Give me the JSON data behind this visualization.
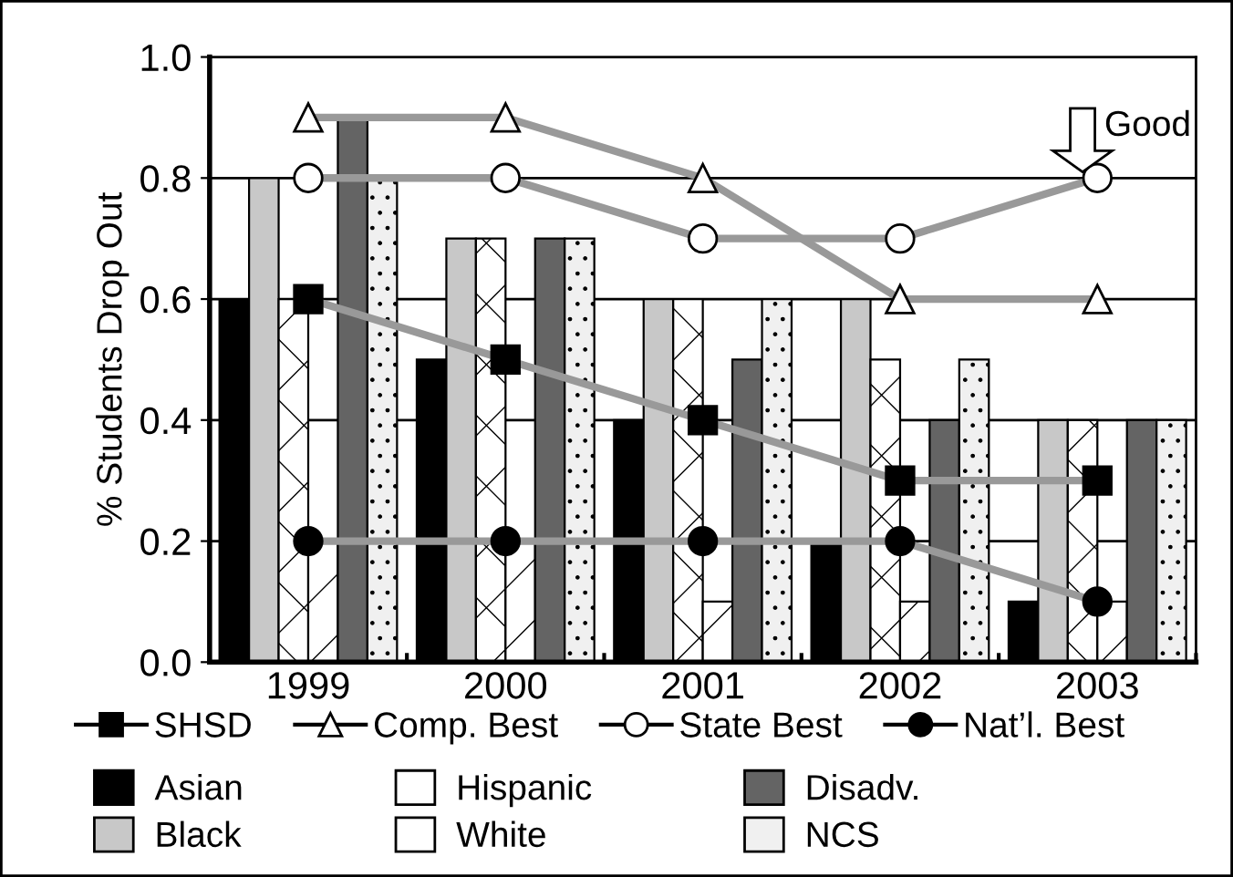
{
  "chart_data": {
    "type": "bar",
    "ylabel": "% Students Drop Out",
    "categories": [
      "1999",
      "2000",
      "2001",
      "2002",
      "2003"
    ],
    "series": [
      {
        "name": "Asian",
        "color": "#000000",
        "values": [
          0.6,
          0.5,
          0.4,
          0.2,
          0.1
        ]
      },
      {
        "name": "Black",
        "color": "#c8c8c8",
        "values": [
          0.8,
          0.7,
          0.6,
          0.6,
          0.4
        ]
      },
      {
        "name": "Hispanic",
        "color": "#ffffff",
        "values": [
          0.6,
          0.7,
          0.6,
          0.5,
          0.4
        ]
      },
      {
        "name": "White",
        "color": "#ffffff",
        "values": [
          0.2,
          0.2,
          0.1,
          0.1,
          0.1
        ]
      },
      {
        "name": "Disadv.",
        "color": "#646464",
        "values": [
          0.9,
          0.7,
          0.5,
          0.4,
          0.4
        ]
      },
      {
        "name": "NCS",
        "color": "#f0f0f0",
        "values": [
          0.8,
          0.7,
          0.6,
          0.5,
          0.4
        ]
      },
      {
        "name": "SHSD",
        "type": "line",
        "color": "#000000",
        "marker": "square",
        "values": [
          0.6,
          0.5,
          0.4,
          0.3,
          0.3
        ]
      },
      {
        "name": "Comp. Best",
        "type": "line",
        "color": "#ffffff",
        "marker": "triangle",
        "values": [
          0.9,
          0.9,
          0.8,
          0.6,
          0.6
        ]
      },
      {
        "name": "State Best",
        "type": "line",
        "color": "#ffffff",
        "marker": "circle",
        "values": [
          0.8,
          0.8,
          0.7,
          0.7,
          0.8
        ]
      },
      {
        "name": "Nat’l. Best",
        "type": "line",
        "color": "#000000",
        "marker": "circle",
        "values": [
          0.2,
          0.2,
          0.2,
          0.2,
          0.1
        ]
      }
    ],
    "ylim": [
      0,
      1.0
    ],
    "yticks": [
      {
        "value": 0,
        "label": "0.0"
      },
      {
        "value": 0.2,
        "label": "0.2"
      },
      {
        "value": 0.4,
        "label": "0.4"
      },
      {
        "value": 0.6,
        "label": "0.6"
      },
      {
        "value": 0.8,
        "label": "0.8"
      },
      {
        "value": 1.0,
        "label": "1.0"
      }
    ],
    "grid": "y",
    "legend": "bottom",
    "line_style": "solid",
    "annotations": [
      "Good"
    ]
  }
}
